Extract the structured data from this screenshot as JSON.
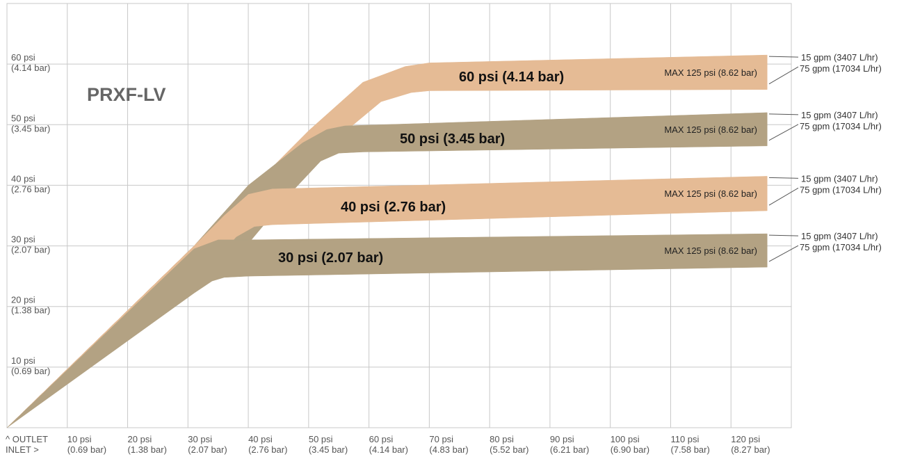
{
  "chart_data": {
    "type": "area",
    "title": "PRXF-LV",
    "corner_label": [
      "^ OUTLET",
      "INLET >"
    ],
    "xlim": [
      0,
      130
    ],
    "ylim": [
      0,
      70
    ],
    "x_ticks": [
      {
        "value": 10,
        "label": [
          "10 psi",
          "(0.69 bar)"
        ]
      },
      {
        "value": 20,
        "label": [
          "20 psi",
          "(1.38 bar)"
        ]
      },
      {
        "value": 30,
        "label": [
          "30 psi",
          "(2.07 bar)"
        ]
      },
      {
        "value": 40,
        "label": [
          "40 psi",
          "(2.76 bar)"
        ]
      },
      {
        "value": 50,
        "label": [
          "50 psi",
          "(3.45 bar)"
        ]
      },
      {
        "value": 60,
        "label": [
          "60 psi",
          "(4.14 bar)"
        ]
      },
      {
        "value": 70,
        "label": [
          "70 psi",
          "(4.83 bar)"
        ]
      },
      {
        "value": 80,
        "label": [
          "80 psi",
          "(5.52 bar)"
        ]
      },
      {
        "value": 90,
        "label": [
          "90 psi",
          "(6.21 bar)"
        ]
      },
      {
        "value": 100,
        "label": [
          "100 psi",
          "(6.90 bar)"
        ]
      },
      {
        "value": 110,
        "label": [
          "110 psi",
          "(7.58 bar)"
        ]
      },
      {
        "value": 120,
        "label": [
          "120 psi",
          "(8.27 bar)"
        ]
      }
    ],
    "y_ticks": [
      {
        "value": 10,
        "label": [
          "10 psi",
          "(0.69 bar)"
        ]
      },
      {
        "value": 20,
        "label": [
          "20 psi",
          "(1.38 bar)"
        ]
      },
      {
        "value": 30,
        "label": [
          "30 psi",
          "(2.07 bar)"
        ]
      },
      {
        "value": 40,
        "label": [
          "40 psi",
          "(2.76 bar)"
        ]
      },
      {
        "value": 50,
        "label": [
          "50 psi",
          "(3.45 bar)"
        ]
      },
      {
        "value": 60,
        "label": [
          "60 psi",
          "(4.14 bar)"
        ]
      }
    ],
    "grid": true,
    "colors": {
      "light_band": "#e5bb95",
      "dark_band": "#b3a283",
      "grid": "#c8c8c8"
    },
    "series": [
      {
        "label": "60 psi  (4.14 bar)",
        "max_label": "MAX 125 psi  (8.62 bar)",
        "color": "#e5bb95",
        "upper_callout": "15 gpm (3407 L/hr)",
        "lower_callout": "75 gpm (17034 L/hr)",
        "upper": [
          [
            0,
            0
          ],
          [
            31,
            30
          ],
          [
            39,
            38
          ],
          [
            50,
            49
          ],
          [
            59,
            57
          ],
          [
            66,
            59.6
          ],
          [
            70,
            60.2
          ],
          [
            126,
            61.5
          ]
        ],
        "lower": [
          [
            126,
            55.8
          ],
          [
            70,
            55.6
          ],
          [
            67,
            55.3
          ],
          [
            62,
            53.8
          ],
          [
            55,
            48
          ],
          [
            45,
            37.8
          ],
          [
            35,
            26.9
          ],
          [
            0,
            0
          ]
        ]
      },
      {
        "label": "50 psi  (3.45 bar)",
        "max_label": "MAX 125 psi  (8.62 bar)",
        "color": "#b3a283",
        "upper_callout": "15 gpm (3407 L/hr)",
        "lower_callout": "75 gpm (17034 L/hr)",
        "upper": [
          [
            0,
            0
          ],
          [
            31,
            30
          ],
          [
            40,
            40
          ],
          [
            49,
            47
          ],
          [
            53,
            49.2
          ],
          [
            56,
            49.8
          ],
          [
            126,
            52
          ]
        ],
        "lower": [
          [
            126,
            46.5
          ],
          [
            59,
            45.5
          ],
          [
            55,
            45.3
          ],
          [
            52,
            44
          ],
          [
            47,
            38.7
          ],
          [
            40,
            30.4
          ],
          [
            34,
            25.3
          ],
          [
            0,
            0
          ]
        ]
      },
      {
        "label": "40 psi  (2.76 bar)",
        "max_label": "MAX 125 psi  (8.62 bar)",
        "color": "#e5bb95",
        "upper_callout": "15 gpm (3407 L/hr)",
        "lower_callout": "75 gpm (17034 L/hr)",
        "upper": [
          [
            0,
            0
          ],
          [
            31,
            30
          ],
          [
            36,
            35
          ],
          [
            40,
            38.5
          ],
          [
            44,
            39.4
          ],
          [
            126,
            41.5
          ]
        ],
        "lower": [
          [
            126,
            35.8
          ],
          [
            44,
            33.5
          ],
          [
            41,
            33.2
          ],
          [
            38,
            31.5
          ],
          [
            34,
            27
          ],
          [
            0,
            0
          ]
        ]
      },
      {
        "label": "30 psi  (2.07 bar)",
        "max_label": "MAX 125 psi  (8.62 bar)",
        "color": "#b3a283",
        "upper_callout": "15 gpm (3407 L/hr)",
        "lower_callout": "75 gpm (17034 L/hr)",
        "upper": [
          [
            0,
            0
          ],
          [
            31,
            29.5
          ],
          [
            35,
            31
          ],
          [
            40,
            31
          ],
          [
            126,
            32
          ]
        ],
        "lower": [
          [
            126,
            26.5
          ],
          [
            40,
            25
          ],
          [
            36,
            24.8
          ],
          [
            34,
            24.2
          ],
          [
            31,
            22.2
          ],
          [
            0,
            0
          ]
        ]
      }
    ]
  }
}
